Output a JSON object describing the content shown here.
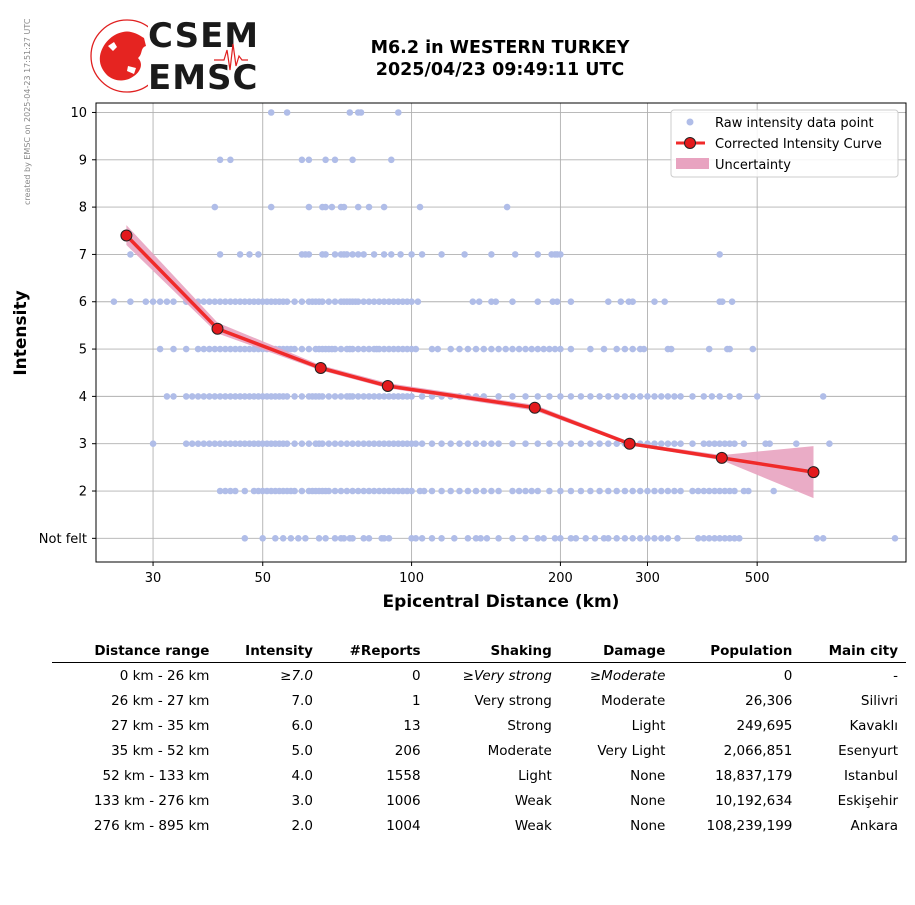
{
  "credit": "created by EMSC on 2025-04-23 17:51:27 UTC",
  "logo": {
    "line1": "CSEM",
    "line2": "EMSC"
  },
  "header": {
    "title_line1": "M6.2 in WESTERN TURKEY",
    "title_line2": "2025/04/23 09:49:11 UTC"
  },
  "colors": {
    "raw_points": "#b0bde8",
    "curve": "#f02a2a",
    "marker_fill": "#e31a1c",
    "uncertainty": "#e8a3c0",
    "grid": "#b0b0b0"
  },
  "chart_data": {
    "type": "scatter",
    "xlabel": "Epicentral Distance (km)",
    "ylabel": "Intensity",
    "x_scale": "log",
    "xlim": [
      23,
      1000
    ],
    "ylim": [
      0.5,
      10.2
    ],
    "x_ticks": [
      30,
      50,
      100,
      200,
      300,
      500
    ],
    "y_ticks": [
      {
        "value": 1,
        "label": "Not felt"
      },
      {
        "value": 2,
        "label": "2"
      },
      {
        "value": 3,
        "label": "3"
      },
      {
        "value": 4,
        "label": "4"
      },
      {
        "value": 5,
        "label": "5"
      },
      {
        "value": 6,
        "label": "6"
      },
      {
        "value": 7,
        "label": "7"
      },
      {
        "value": 8,
        "label": "8"
      },
      {
        "value": 9,
        "label": "9"
      },
      {
        "value": 10,
        "label": "10"
      }
    ],
    "grid": true,
    "legend_position": "top-right",
    "legend": [
      {
        "label": "Raw intensity data point",
        "kind": "dot"
      },
      {
        "label": "Corrected Intensity Curve",
        "kind": "line"
      },
      {
        "label": "Uncertainty",
        "kind": "band"
      }
    ],
    "raw_points": [
      {
        "intensity": 10,
        "x": [
          52,
          56,
          75,
          78,
          79,
          94
        ]
      },
      {
        "intensity": 9,
        "x": [
          41,
          43,
          60,
          62,
          67,
          70,
          76,
          91
        ]
      },
      {
        "intensity": 8,
        "x": [
          40,
          52,
          62,
          66,
          67,
          69,
          72,
          73,
          78,
          82,
          88,
          104,
          156
        ]
      },
      {
        "intensity": 7,
        "x": [
          27,
          41,
          45,
          47,
          49,
          60,
          61,
          62,
          66,
          67,
          70,
          72,
          73,
          74,
          76,
          78,
          80,
          84,
          88,
          91,
          95,
          100,
          105,
          115,
          128,
          145,
          162,
          180,
          192,
          195,
          197,
          200,
          420
        ]
      },
      {
        "intensity": 6,
        "x": [
          25,
          27,
          29,
          30,
          31,
          32,
          33,
          35,
          36,
          37,
          38,
          39,
          40,
          41,
          42,
          43,
          44,
          45,
          46,
          47,
          48,
          49,
          50,
          51,
          52,
          53,
          54,
          55,
          56,
          58,
          60,
          62,
          63,
          64,
          65,
          66,
          68,
          70,
          72,
          73,
          74,
          75,
          76,
          77,
          78,
          80,
          82,
          84,
          86,
          88,
          90,
          92,
          94,
          96,
          98,
          100,
          103,
          133,
          137,
          145,
          148,
          160,
          180,
          193,
          197,
          210,
          250,
          265,
          275,
          280,
          310,
          325,
          420,
          425,
          445
        ]
      },
      {
        "intensity": 5,
        "x": [
          31,
          33,
          35,
          37,
          38,
          39,
          40,
          41,
          42,
          43,
          44,
          45,
          46,
          47,
          48,
          49,
          50,
          51,
          52,
          53,
          54,
          55,
          56,
          57,
          58,
          60,
          62,
          64,
          65,
          66,
          67,
          68,
          69,
          70,
          72,
          74,
          75,
          76,
          78,
          80,
          82,
          84,
          85,
          86,
          88,
          90,
          92,
          94,
          96,
          98,
          100,
          102,
          110,
          113,
          120,
          125,
          130,
          135,
          140,
          145,
          150,
          155,
          160,
          165,
          170,
          175,
          180,
          185,
          190,
          195,
          200,
          210,
          230,
          245,
          260,
          270,
          280,
          290,
          295,
          330,
          335,
          400,
          435,
          440,
          490
        ]
      },
      {
        "intensity": 4,
        "x": [
          32,
          33,
          35,
          36,
          37,
          38,
          39,
          40,
          41,
          42,
          43,
          44,
          45,
          46,
          47,
          48,
          49,
          50,
          51,
          52,
          53,
          54,
          55,
          56,
          58,
          60,
          62,
          63,
          64,
          65,
          66,
          68,
          70,
          72,
          74,
          75,
          76,
          78,
          80,
          82,
          84,
          86,
          88,
          90,
          92,
          94,
          96,
          98,
          100,
          105,
          110,
          115,
          120,
          125,
          130,
          135,
          140,
          150,
          160,
          170,
          180,
          190,
          200,
          210,
          220,
          230,
          240,
          250,
          260,
          270,
          280,
          290,
          300,
          310,
          320,
          330,
          340,
          350,
          370,
          390,
          405,
          420,
          440,
          460,
          500,
          680
        ]
      },
      {
        "intensity": 3,
        "x": [
          30,
          35,
          36,
          37,
          38,
          39,
          40,
          41,
          42,
          43,
          44,
          45,
          46,
          47,
          48,
          49,
          50,
          51,
          52,
          53,
          54,
          55,
          56,
          58,
          60,
          62,
          64,
          65,
          66,
          68,
          70,
          72,
          74,
          76,
          78,
          80,
          82,
          84,
          86,
          88,
          90,
          92,
          94,
          96,
          98,
          100,
          102,
          105,
          110,
          115,
          120,
          125,
          130,
          135,
          140,
          145,
          150,
          160,
          170,
          180,
          190,
          200,
          210,
          220,
          230,
          240,
          250,
          260,
          270,
          280,
          290,
          300,
          310,
          320,
          330,
          340,
          350,
          370,
          390,
          400,
          410,
          420,
          430,
          440,
          450,
          470,
          520,
          530,
          600,
          700
        ]
      },
      {
        "intensity": 2,
        "x": [
          41,
          42,
          43,
          44,
          46,
          48,
          49,
          50,
          51,
          52,
          53,
          54,
          55,
          56,
          57,
          58,
          60,
          62,
          63,
          64,
          65,
          66,
          67,
          68,
          70,
          72,
          74,
          76,
          78,
          80,
          82,
          84,
          86,
          88,
          90,
          92,
          94,
          96,
          98,
          100,
          104,
          106,
          110,
          115,
          120,
          125,
          130,
          135,
          140,
          145,
          150,
          160,
          165,
          170,
          175,
          180,
          190,
          200,
          210,
          220,
          230,
          240,
          250,
          260,
          270,
          280,
          290,
          300,
          310,
          320,
          330,
          340,
          350,
          370,
          380,
          390,
          400,
          410,
          420,
          430,
          440,
          450,
          470,
          480,
          540
        ]
      },
      {
        "intensity": 1,
        "x": [
          46,
          50,
          53,
          55,
          57,
          59,
          61,
          65,
          67,
          70,
          72,
          73,
          75,
          76,
          80,
          82,
          87,
          88,
          90,
          100,
          102,
          105,
          110,
          115,
          122,
          130,
          135,
          138,
          142,
          150,
          160,
          170,
          180,
          185,
          195,
          200,
          210,
          215,
          225,
          235,
          245,
          250,
          260,
          270,
          280,
          290,
          300,
          310,
          320,
          330,
          345,
          380,
          390,
          400,
          410,
          420,
          430,
          440,
          450,
          460,
          660,
          680,
          950
        ]
      }
    ],
    "series": [
      {
        "name": "Corrected Intensity Curve",
        "x": [
          26.5,
          40.5,
          65.5,
          89.5,
          177.5,
          276,
          424,
          650
        ],
        "y": [
          7.4,
          5.43,
          4.6,
          4.22,
          3.76,
          3.0,
          2.7,
          2.4
        ]
      }
    ],
    "uncertainty": {
      "name": "Uncertainty",
      "x": [
        26.5,
        40.5,
        65.5,
        89.5,
        177.5,
        276,
        424,
        650
      ],
      "lower": [
        7.2,
        5.33,
        4.55,
        4.17,
        3.7,
        2.97,
        2.65,
        1.85
      ],
      "upper": [
        7.62,
        5.56,
        4.66,
        4.28,
        3.82,
        3.04,
        2.76,
        2.95
      ]
    }
  },
  "table": {
    "headers": [
      "Distance range",
      "Intensity",
      "#Reports",
      "Shaking",
      "Damage",
      "Population",
      "Main city"
    ],
    "rows": [
      {
        "range": "0 km -   26 km",
        "intensity": "≥7.0",
        "reports": "0",
        "shaking": "≥Very strong",
        "damage": "≥Moderate",
        "population": "0",
        "city": "-"
      },
      {
        "range": "26 km -   27 km",
        "intensity": "7.0",
        "reports": "1",
        "shaking": "Very strong",
        "damage": "Moderate",
        "population": "26,306",
        "city": "Silivri"
      },
      {
        "range": "27 km -   35 km",
        "intensity": "6.0",
        "reports": "13",
        "shaking": "Strong",
        "damage": "Light",
        "population": "249,695",
        "city": "Kavaklı"
      },
      {
        "range": "35 km -   52 km",
        "intensity": "5.0",
        "reports": "206",
        "shaking": "Moderate",
        "damage": "Very Light",
        "population": "2,066,851",
        "city": "Esenyurt"
      },
      {
        "range": "52 km -  133 km",
        "intensity": "4.0",
        "reports": "1558",
        "shaking": "Light",
        "damage": "None",
        "population": "18,837,179",
        "city": "Istanbul"
      },
      {
        "range": "133 km -  276 km",
        "intensity": "3.0",
        "reports": "1006",
        "shaking": "Weak",
        "damage": "None",
        "population": "10,192,634",
        "city": "Eskişehir"
      },
      {
        "range": "276 km -  895 km",
        "intensity": "2.0",
        "reports": "1004",
        "shaking": "Weak",
        "damage": "None",
        "population": "108,239,199",
        "city": "Ankara"
      }
    ]
  }
}
